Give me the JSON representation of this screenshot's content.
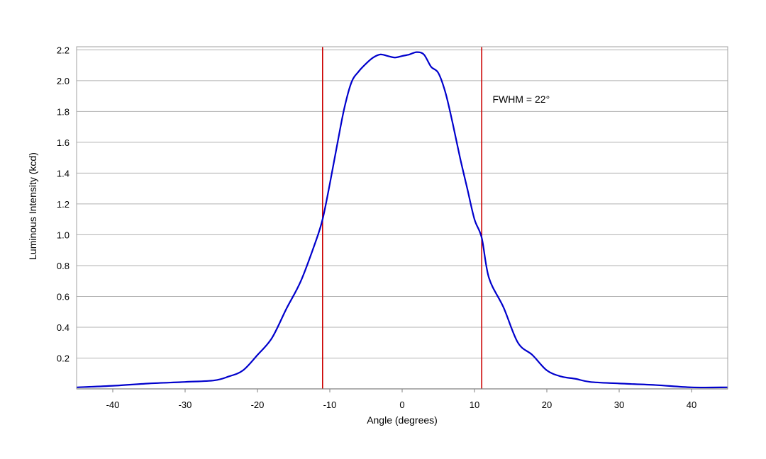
{
  "chart_data": {
    "type": "line",
    "title": "",
    "xlabel": "Angle (degrees)",
    "ylabel": "Luminous Intensity (kcd)",
    "xlim": [
      -45,
      45
    ],
    "ylim": [
      0,
      2.22
    ],
    "x_ticks": [
      -40,
      -30,
      -20,
      -10,
      0,
      10,
      20,
      30,
      40
    ],
    "y_ticks": [
      0.2,
      0.4,
      0.6,
      0.8,
      1.0,
      1.2,
      1.4,
      1.6,
      1.8,
      2.0,
      2.2
    ],
    "x_tick_labels": [
      "-40",
      "-30",
      "-20",
      "-10",
      "0",
      "10",
      "20",
      "30",
      "40"
    ],
    "y_tick_labels": [
      "0.2",
      "0.4",
      "0.6",
      "0.8",
      "1.0",
      "1.2",
      "1.4",
      "1.6",
      "1.8",
      "2.0",
      "2.2"
    ],
    "grid": "horizontal",
    "legend": "none",
    "series": [
      {
        "color": "#0000cc",
        "x": [
          -45,
          -40,
          -35,
          -30,
          -26,
          -24,
          -22,
          -20,
          -18,
          -16,
          -14,
          -12,
          -11,
          -10,
          -9,
          -8,
          -7,
          -6,
          -5,
          -4,
          -3,
          -2,
          -1,
          0,
          1,
          2,
          3,
          4,
          5,
          6,
          7,
          8,
          9,
          10,
          11,
          12,
          14,
          16,
          18,
          20,
          22,
          24,
          26,
          30,
          35,
          40,
          45
        ],
        "y": [
          0.01,
          0.02,
          0.035,
          0.045,
          0.055,
          0.08,
          0.12,
          0.22,
          0.33,
          0.52,
          0.7,
          0.95,
          1.1,
          1.33,
          1.58,
          1.82,
          1.99,
          2.06,
          2.11,
          2.15,
          2.17,
          2.16,
          2.15,
          2.16,
          2.17,
          2.185,
          2.17,
          2.09,
          2.05,
          1.92,
          1.72,
          1.5,
          1.3,
          1.1,
          0.98,
          0.72,
          0.53,
          0.3,
          0.22,
          0.12,
          0.08,
          0.065,
          0.045,
          0.035,
          0.025,
          0.01,
          0.01
        ]
      }
    ],
    "vertical_lines": [
      {
        "x": -11,
        "color": "#cc0000"
      },
      {
        "x": 11,
        "color": "#cc0000"
      }
    ],
    "annotations": [
      {
        "text": "FWHM = 22°",
        "x": 12.5,
        "y": 1.88
      }
    ],
    "colors": {
      "grid": "#b0b0b0",
      "frame": "#a0a0a0"
    }
  }
}
